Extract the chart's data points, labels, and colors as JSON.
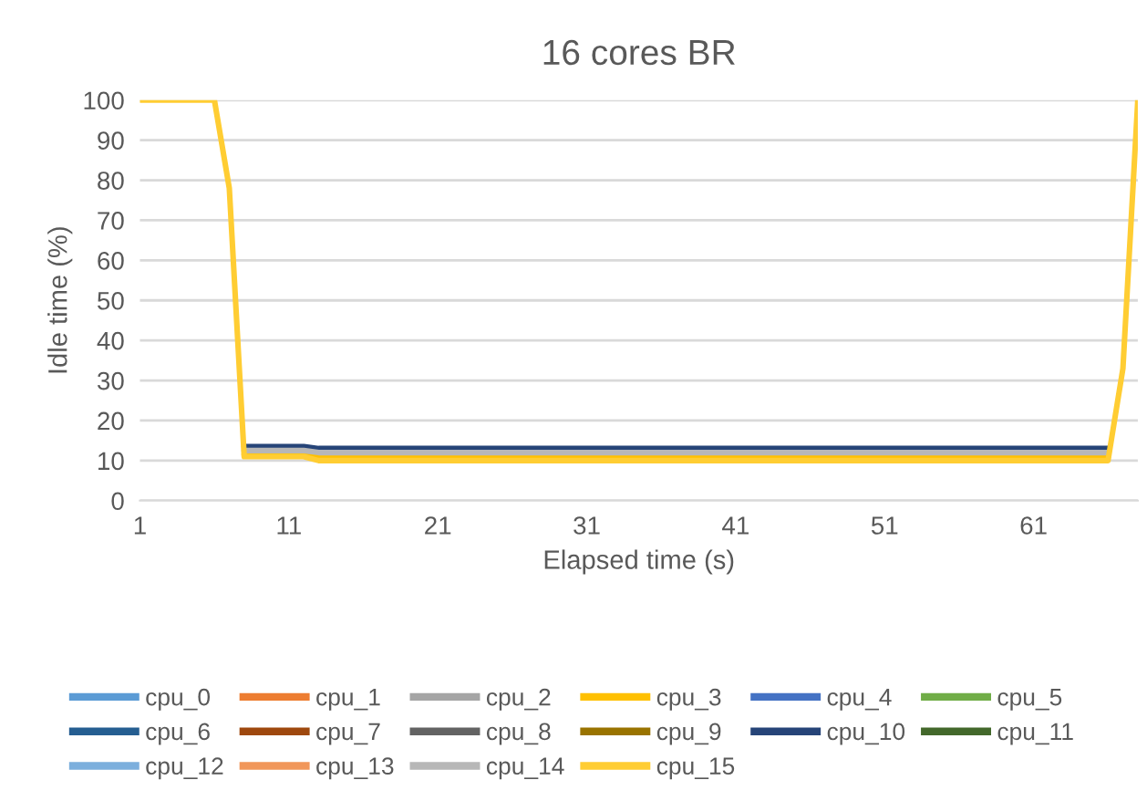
{
  "chart_data": {
    "type": "line",
    "title": "16 cores BR",
    "xlabel": "Elapsed time (s)",
    "ylabel": "Idle time (%)",
    "x": [
      1,
      2,
      3,
      4,
      5,
      6,
      7,
      8,
      9,
      10,
      11,
      12,
      13,
      14,
      15,
      16,
      17,
      18,
      19,
      20,
      21,
      22,
      23,
      24,
      25,
      26,
      27,
      28,
      29,
      30,
      31,
      32,
      33,
      34,
      35,
      36,
      37,
      38,
      39,
      40,
      41,
      42,
      43,
      44,
      45,
      46,
      47,
      48,
      49,
      50,
      51,
      52,
      53,
      54,
      55,
      56,
      57,
      58,
      59,
      60,
      61,
      62,
      63,
      64,
      65,
      66,
      67,
      68
    ],
    "xlim": [
      1,
      68
    ],
    "xticks": [
      1,
      11,
      21,
      31,
      41,
      51,
      61
    ],
    "ylim": [
      0,
      100
    ],
    "yticks": [
      0,
      10,
      20,
      30,
      40,
      50,
      60,
      70,
      80,
      90,
      100
    ],
    "grid": "y",
    "legend": "bottom",
    "marker": "none",
    "line_style": "solid",
    "series": [
      {
        "name": "cpu_0",
        "color": "#5b9bd5",
        "values": [
          null,
          null,
          null,
          null,
          null,
          null,
          null,
          null,
          null,
          null,
          null,
          null,
          null,
          null,
          null,
          null,
          null,
          null,
          null,
          null,
          null,
          null,
          null,
          null,
          null,
          null,
          null,
          null,
          null,
          null,
          null,
          null,
          null,
          null,
          null,
          null,
          null,
          null,
          null,
          null,
          null,
          null,
          null,
          null,
          null,
          null,
          null,
          null,
          null,
          null,
          null,
          null,
          null,
          null,
          null,
          null,
          null,
          null,
          null,
          null,
          null,
          null,
          null,
          null,
          null,
          null,
          null,
          null
        ]
      },
      {
        "name": "cpu_1",
        "color": "#ed7d31",
        "values": [
          null,
          null,
          null,
          null,
          null,
          null,
          null,
          null,
          null,
          null,
          null,
          null,
          null,
          null,
          null,
          null,
          null,
          null,
          null,
          null,
          null,
          null,
          null,
          null,
          null,
          null,
          null,
          null,
          null,
          null,
          null,
          null,
          null,
          null,
          null,
          null,
          null,
          null,
          null,
          null,
          null,
          null,
          null,
          null,
          null,
          null,
          null,
          null,
          null,
          null,
          null,
          null,
          null,
          null,
          null,
          null,
          null,
          null,
          null,
          null,
          null,
          null,
          null,
          null,
          null,
          null,
          null,
          null
        ]
      },
      {
        "name": "cpu_2",
        "color": "#a5a5a5",
        "values": [
          null,
          null,
          null,
          null,
          null,
          null,
          null,
          null,
          null,
          null,
          null,
          null,
          null,
          null,
          null,
          null,
          null,
          null,
          null,
          null,
          null,
          null,
          null,
          null,
          null,
          null,
          null,
          null,
          null,
          null,
          null,
          null,
          null,
          null,
          null,
          null,
          null,
          null,
          null,
          null,
          null,
          null,
          null,
          null,
          null,
          null,
          null,
          null,
          null,
          null,
          null,
          null,
          null,
          null,
          null,
          null,
          null,
          null,
          null,
          null,
          null,
          null,
          null,
          null,
          null,
          null,
          null,
          null
        ]
      },
      {
        "name": "cpu_3",
        "color": "#ffc000",
        "values": [
          null,
          null,
          null,
          null,
          null,
          null,
          null,
          11.5,
          11.5,
          11.5,
          11.5,
          11.5,
          11,
          11,
          11,
          11,
          11,
          11,
          11,
          11,
          11,
          11,
          11,
          11,
          11,
          11,
          11,
          11,
          11,
          11,
          11,
          11,
          11,
          11,
          11,
          11,
          11,
          11,
          11,
          11,
          11,
          11,
          11,
          11,
          11,
          11,
          11,
          11,
          11,
          11,
          11,
          11,
          11,
          11,
          11,
          11,
          11,
          11,
          11,
          11,
          11,
          11,
          11,
          11,
          11,
          11,
          null,
          null
        ]
      },
      {
        "name": "cpu_4",
        "color": "#4472c4",
        "values": [
          null,
          null,
          null,
          null,
          null,
          null,
          null,
          null,
          null,
          null,
          null,
          null,
          null,
          null,
          null,
          null,
          null,
          null,
          null,
          null,
          null,
          null,
          null,
          null,
          null,
          null,
          null,
          null,
          null,
          null,
          null,
          null,
          null,
          null,
          null,
          null,
          null,
          null,
          null,
          null,
          null,
          null,
          null,
          null,
          null,
          null,
          null,
          null,
          null,
          null,
          null,
          null,
          null,
          null,
          null,
          null,
          null,
          null,
          null,
          null,
          null,
          null,
          null,
          null,
          null,
          null,
          null,
          null
        ]
      },
      {
        "name": "cpu_5",
        "color": "#70ad47",
        "values": [
          null,
          null,
          null,
          null,
          null,
          null,
          null,
          null,
          null,
          null,
          null,
          null,
          null,
          null,
          null,
          null,
          null,
          null,
          null,
          null,
          null,
          null,
          null,
          null,
          null,
          null,
          null,
          null,
          null,
          null,
          null,
          null,
          null,
          null,
          null,
          null,
          null,
          null,
          null,
          null,
          null,
          null,
          null,
          null,
          null,
          null,
          null,
          null,
          null,
          null,
          null,
          null,
          null,
          null,
          null,
          null,
          null,
          null,
          null,
          null,
          null,
          null,
          null,
          null,
          null,
          null,
          null,
          null
        ]
      },
      {
        "name": "cpu_6",
        "color": "#255e91",
        "values": [
          null,
          null,
          null,
          null,
          null,
          null,
          null,
          null,
          null,
          null,
          null,
          null,
          null,
          null,
          null,
          null,
          null,
          null,
          null,
          null,
          null,
          null,
          null,
          null,
          null,
          null,
          null,
          null,
          null,
          null,
          null,
          null,
          null,
          null,
          null,
          null,
          null,
          null,
          null,
          null,
          null,
          null,
          null,
          null,
          null,
          null,
          null,
          null,
          null,
          null,
          null,
          null,
          null,
          null,
          null,
          null,
          null,
          null,
          null,
          null,
          null,
          null,
          null,
          null,
          null,
          null,
          null,
          null
        ]
      },
      {
        "name": "cpu_7",
        "color": "#9e480e",
        "values": [
          null,
          null,
          null,
          null,
          null,
          null,
          null,
          null,
          null,
          null,
          null,
          null,
          null,
          null,
          null,
          null,
          null,
          null,
          null,
          null,
          null,
          null,
          null,
          null,
          null,
          null,
          null,
          null,
          null,
          null,
          null,
          null,
          null,
          null,
          null,
          null,
          null,
          null,
          null,
          null,
          null,
          null,
          null,
          null,
          null,
          null,
          null,
          null,
          null,
          null,
          null,
          null,
          null,
          null,
          null,
          null,
          null,
          null,
          null,
          null,
          null,
          null,
          null,
          null,
          null,
          null,
          null,
          null
        ]
      },
      {
        "name": "cpu_8",
        "color": "#636363",
        "values": [
          null,
          null,
          null,
          null,
          null,
          null,
          null,
          null,
          null,
          null,
          null,
          null,
          null,
          null,
          null,
          null,
          null,
          null,
          null,
          null,
          null,
          null,
          null,
          null,
          null,
          null,
          null,
          null,
          null,
          null,
          null,
          null,
          null,
          null,
          null,
          null,
          null,
          null,
          null,
          null,
          null,
          null,
          null,
          null,
          null,
          null,
          null,
          null,
          null,
          null,
          null,
          null,
          null,
          null,
          null,
          null,
          null,
          null,
          null,
          null,
          null,
          null,
          null,
          null,
          null,
          null,
          null,
          null
        ]
      },
      {
        "name": "cpu_9",
        "color": "#997300",
        "values": [
          null,
          null,
          null,
          null,
          null,
          null,
          null,
          null,
          null,
          null,
          null,
          null,
          null,
          null,
          null,
          null,
          null,
          null,
          null,
          null,
          null,
          null,
          null,
          null,
          null,
          null,
          null,
          null,
          null,
          null,
          null,
          null,
          null,
          null,
          null,
          null,
          null,
          null,
          null,
          null,
          null,
          null,
          null,
          null,
          null,
          null,
          null,
          null,
          null,
          null,
          null,
          null,
          null,
          null,
          null,
          null,
          null,
          null,
          null,
          null,
          null,
          null,
          null,
          null,
          null,
          null,
          null,
          null
        ]
      },
      {
        "name": "cpu_10",
        "color": "#264478",
        "values": [
          null,
          null,
          null,
          null,
          null,
          null,
          null,
          13.5,
          13.5,
          13.5,
          13.5,
          13.5,
          13,
          13,
          13,
          13,
          13,
          13,
          13,
          13,
          13,
          13,
          13,
          13,
          13,
          13,
          13,
          13,
          13,
          13,
          13,
          13,
          13,
          13,
          13,
          13,
          13,
          13,
          13,
          13,
          13,
          13,
          13,
          13,
          13,
          13,
          13,
          13,
          13,
          13,
          13,
          13,
          13,
          13,
          13,
          13,
          13,
          13,
          13,
          13,
          13,
          13,
          13,
          13,
          13,
          13,
          null,
          null
        ]
      },
      {
        "name": "cpu_11",
        "color": "#43682b",
        "values": [
          null,
          null,
          null,
          null,
          null,
          null,
          null,
          null,
          null,
          null,
          null,
          null,
          null,
          null,
          null,
          null,
          null,
          null,
          null,
          null,
          null,
          null,
          null,
          null,
          null,
          null,
          null,
          null,
          null,
          null,
          null,
          null,
          null,
          null,
          null,
          null,
          null,
          null,
          null,
          null,
          null,
          null,
          null,
          null,
          null,
          null,
          null,
          null,
          null,
          null,
          null,
          null,
          null,
          null,
          null,
          null,
          null,
          null,
          null,
          null,
          null,
          null,
          null,
          null,
          null,
          null,
          null,
          null
        ]
      },
      {
        "name": "cpu_12",
        "color": "#7cafdd",
        "values": [
          null,
          null,
          null,
          null,
          null,
          null,
          null,
          null,
          null,
          null,
          null,
          null,
          null,
          null,
          null,
          null,
          null,
          null,
          null,
          null,
          null,
          null,
          null,
          null,
          null,
          null,
          null,
          null,
          null,
          null,
          null,
          null,
          null,
          null,
          null,
          null,
          null,
          null,
          null,
          null,
          null,
          null,
          null,
          null,
          null,
          null,
          null,
          null,
          null,
          null,
          null,
          null,
          null,
          null,
          null,
          null,
          null,
          null,
          null,
          null,
          null,
          null,
          null,
          null,
          null,
          null,
          null,
          null
        ]
      },
      {
        "name": "cpu_13",
        "color": "#f1975a",
        "values": [
          null,
          null,
          null,
          null,
          null,
          null,
          null,
          null,
          null,
          null,
          null,
          null,
          null,
          null,
          null,
          null,
          null,
          null,
          null,
          null,
          null,
          null,
          null,
          null,
          null,
          null,
          null,
          null,
          null,
          null,
          null,
          null,
          null,
          null,
          null,
          null,
          null,
          null,
          null,
          null,
          null,
          null,
          null,
          null,
          null,
          null,
          null,
          null,
          null,
          null,
          null,
          null,
          null,
          null,
          null,
          null,
          null,
          null,
          null,
          null,
          null,
          null,
          null,
          null,
          null,
          null,
          null,
          null
        ]
      },
      {
        "name": "cpu_14",
        "color": "#b7b7b7",
        "values": [
          null,
          null,
          null,
          null,
          null,
          null,
          null,
          12.5,
          12.5,
          12.5,
          12.5,
          12.5,
          12,
          12,
          12,
          12,
          12,
          12,
          12,
          12,
          12,
          12,
          12,
          12,
          12,
          12,
          12,
          12,
          12,
          12,
          12,
          12,
          12,
          12,
          12,
          12,
          12,
          12,
          12,
          12,
          12,
          12,
          12,
          12,
          12,
          12,
          12,
          12,
          12,
          12,
          12,
          12,
          12,
          12,
          12,
          12,
          12,
          12,
          12,
          12,
          12,
          12,
          12,
          12,
          12,
          12,
          null,
          null
        ]
      },
      {
        "name": "cpu_15",
        "color": "#ffcd33",
        "values": [
          100,
          100,
          100,
          100,
          100,
          100,
          78,
          11,
          11,
          11,
          11,
          11,
          10,
          10,
          10,
          10,
          10,
          10,
          10,
          10,
          10,
          10,
          10,
          10,
          10,
          10,
          10,
          10,
          10,
          10,
          10,
          10,
          10,
          10,
          10,
          10,
          10,
          10,
          10,
          10,
          10,
          10,
          10,
          10,
          10,
          10,
          10,
          10,
          10,
          10,
          10,
          10,
          10,
          10,
          10,
          10,
          10,
          10,
          10,
          10,
          10,
          10,
          10,
          10,
          10,
          10,
          33,
          100
        ]
      }
    ]
  }
}
